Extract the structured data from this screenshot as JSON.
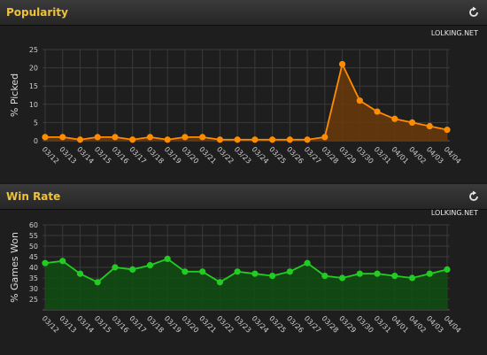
{
  "colors": {
    "title": "#f0c23a",
    "popularity_line": "#ff8c00",
    "popularity_fill": "#6b3a0a",
    "winrate_line": "#22cc22",
    "winrate_fill": "#0f4f10",
    "grid": "#3a3a3a",
    "background": "#1e1e1e"
  },
  "icons": {
    "refresh": "refresh-icon"
  },
  "chart_data": [
    {
      "panel_title": "Popularity",
      "source": "LOLKING.NET",
      "type": "area",
      "ylabel": "% Picked",
      "xlabel": "",
      "ylim": [
        0,
        25
      ],
      "yticks": [
        0,
        5,
        10,
        15,
        20,
        25
      ],
      "grid": true,
      "categories": [
        "03/12",
        "03/13",
        "03/14",
        "03/15",
        "03/16",
        "03/17",
        "03/18",
        "03/19",
        "03/20",
        "03/21",
        "03/22",
        "03/23",
        "03/24",
        "03/25",
        "03/26",
        "03/27",
        "03/28",
        "03/29",
        "03/30",
        "03/31",
        "04/01",
        "04/02",
        "04/03",
        "04/04"
      ],
      "values": [
        1,
        1,
        0.3,
        1,
        1,
        0.3,
        1,
        0.3,
        1,
        1,
        0.3,
        0.3,
        0.3,
        0.3,
        0.3,
        0.3,
        1,
        21,
        11,
        8,
        6,
        5,
        4,
        3
      ]
    },
    {
      "panel_title": "Win Rate",
      "source": "LOLKING.NET",
      "type": "area",
      "ylabel": "% Games Won",
      "xlabel": "",
      "ylim": [
        20,
        60
      ],
      "yticks": [
        25,
        30,
        35,
        40,
        45,
        50,
        55,
        60
      ],
      "grid": true,
      "categories": [
        "03/12",
        "03/13",
        "03/14",
        "03/15",
        "03/16",
        "03/17",
        "03/18",
        "03/19",
        "03/20",
        "03/21",
        "03/22",
        "03/23",
        "03/24",
        "03/25",
        "03/26",
        "03/27",
        "03/28",
        "03/29",
        "03/30",
        "03/31",
        "04/01",
        "04/02",
        "04/03",
        "04/04"
      ],
      "values": [
        42,
        43,
        37,
        33,
        40,
        39,
        41,
        44,
        38,
        38,
        33,
        38,
        37,
        36,
        38,
        42,
        36,
        35,
        37,
        37,
        36,
        35,
        37,
        39
      ]
    }
  ]
}
